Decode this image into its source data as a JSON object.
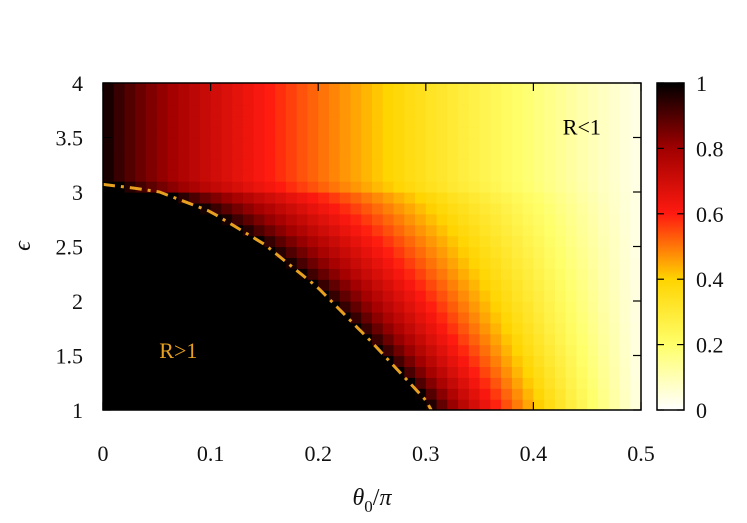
{
  "chart_data": {
    "type": "heatmap",
    "title": "",
    "xlabel": "θ0/π",
    "ylabel": "ϵ",
    "xlim": [
      0,
      0.5
    ],
    "ylim": [
      1,
      4
    ],
    "x_ticks": [
      "0",
      "0.1",
      "0.2",
      "0.3",
      "0.4",
      "0.5"
    ],
    "y_ticks": [
      "1",
      "1.5",
      "2",
      "2.5",
      "3",
      "3.5",
      "4"
    ],
    "colorbar": {
      "range": [
        0,
        1
      ],
      "ticks": [
        "0",
        "0.2",
        "0.4",
        "0.6",
        "0.8",
        "1"
      ],
      "colormap": "hot (white at 0, yellow, red, black at 1)"
    },
    "boundary_curve": {
      "style": "dash-dot",
      "color": "#e8a020",
      "points": [
        [
          0,
          3.07
        ],
        [
          0.05,
          3.01
        ],
        [
          0.1,
          2.82
        ],
        [
          0.15,
          2.52
        ],
        [
          0.2,
          2.12
        ],
        [
          0.25,
          1.62
        ],
        [
          0.3,
          1.09
        ],
        [
          0.305,
          1.0
        ]
      ]
    },
    "annotations": [
      {
        "text": "R<1",
        "x": 0.445,
        "y": 3.6,
        "color": "#000000"
      },
      {
        "text": "R>1",
        "x": 0.07,
        "y": 1.55,
        "color": "#e8a020"
      }
    ],
    "grid": false
  }
}
